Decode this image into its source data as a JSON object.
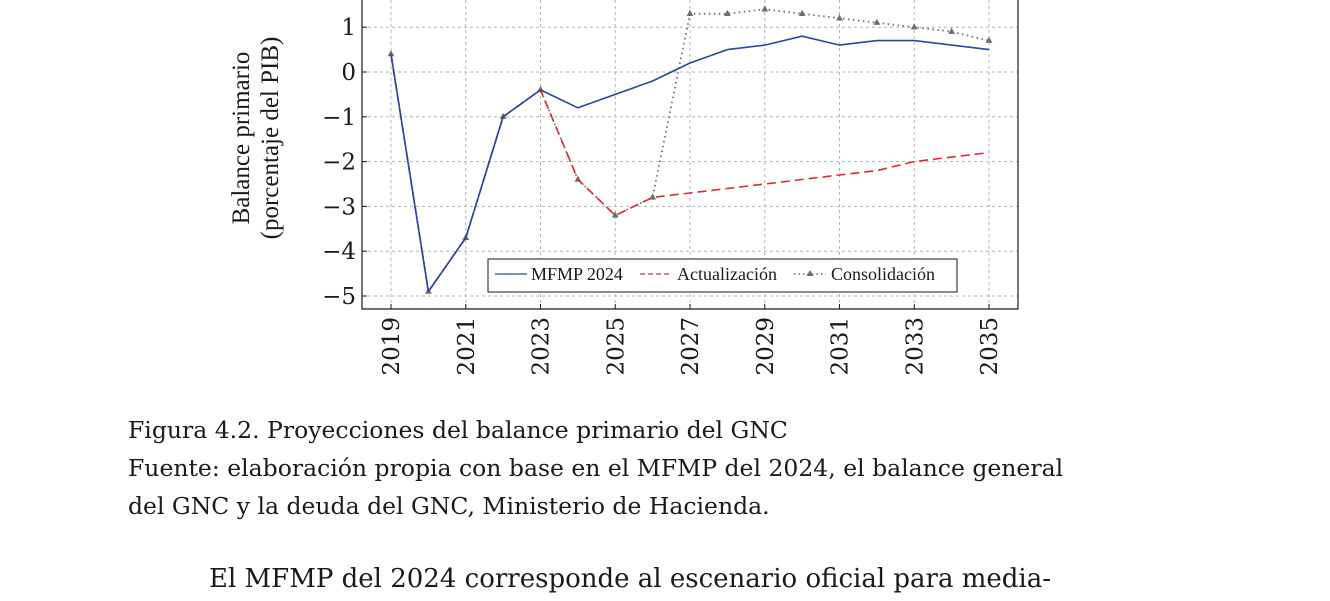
{
  "chart_data": {
    "type": "line",
    "ylabel_line1": "Balance primario",
    "ylabel_line2": "(porcentaje del PIB)",
    "ylim": [
      -5.4,
      1.5
    ],
    "xlim": [
      2018.6,
      2035.4
    ],
    "yticks": [
      1,
      0,
      -1,
      -2,
      -3,
      -4,
      -5
    ],
    "ytick_labels": [
      "1",
      "0",
      "−1",
      "−2",
      "−3",
      "−4",
      "−5"
    ],
    "xticks": [
      2019,
      2021,
      2023,
      2025,
      2027,
      2029,
      2031,
      2033,
      2035
    ],
    "xtick_labels": [
      "2019",
      "2021",
      "2023",
      "2025",
      "2027",
      "2029",
      "2031",
      "2033",
      "2035"
    ],
    "grid": true,
    "legend_position": "bottom-center",
    "series": [
      {
        "name": "MFMP 2024",
        "color": "#2a46a4",
        "style": "solid",
        "x": [
          2019,
          2020,
          2021,
          2022,
          2023,
          2024,
          2025,
          2026,
          2027,
          2028,
          2029,
          2030,
          2031,
          2032,
          2033,
          2034,
          2035
        ],
        "y": [
          0.4,
          -4.9,
          -3.7,
          -1.0,
          -0.4,
          -0.8,
          -0.5,
          -0.2,
          0.2,
          0.5,
          0.6,
          0.8,
          0.6,
          0.7,
          0.7,
          0.6,
          0.5
        ]
      },
      {
        "name": "Actualización",
        "color": "#e32636",
        "style": "dashed",
        "x": [
          2019,
          2020,
          2021,
          2022,
          2023,
          2024,
          2025,
          2026,
          2027,
          2028,
          2029,
          2030,
          2031,
          2032,
          2033,
          2034,
          2035
        ],
        "y": [
          0.4,
          -4.9,
          -3.7,
          -1.0,
          -0.4,
          -2.4,
          -3.2,
          -2.8,
          -2.7,
          -2.6,
          -2.5,
          -2.4,
          -2.3,
          -2.2,
          -2.0,
          -1.9,
          -1.8
        ]
      },
      {
        "name": "Consolidación",
        "color": "#6e6e6e",
        "style": "dotted",
        "marker": "triangle",
        "x": [
          2019,
          2020,
          2021,
          2022,
          2023,
          2024,
          2025,
          2026,
          2027,
          2028,
          2029,
          2030,
          2031,
          2032,
          2033,
          2034,
          2035
        ],
        "y": [
          0.4,
          -4.9,
          -3.7,
          -1.0,
          -0.4,
          -2.4,
          -3.2,
          -2.8,
          1.3,
          1.3,
          1.4,
          1.3,
          1.2,
          1.1,
          1.0,
          0.9,
          0.7
        ]
      }
    ]
  },
  "caption": {
    "line1": "Figura 4.2. Proyecciones del balance primario del GNC",
    "line2": "Fuente: elaboración propia con base en el MFMP del 2024, el balance general",
    "line3": "del GNC y la deuda del GNC, Ministerio de Hacienda."
  },
  "body_text": "El MFMP del 2024 corresponde al escenario oficial para media-"
}
